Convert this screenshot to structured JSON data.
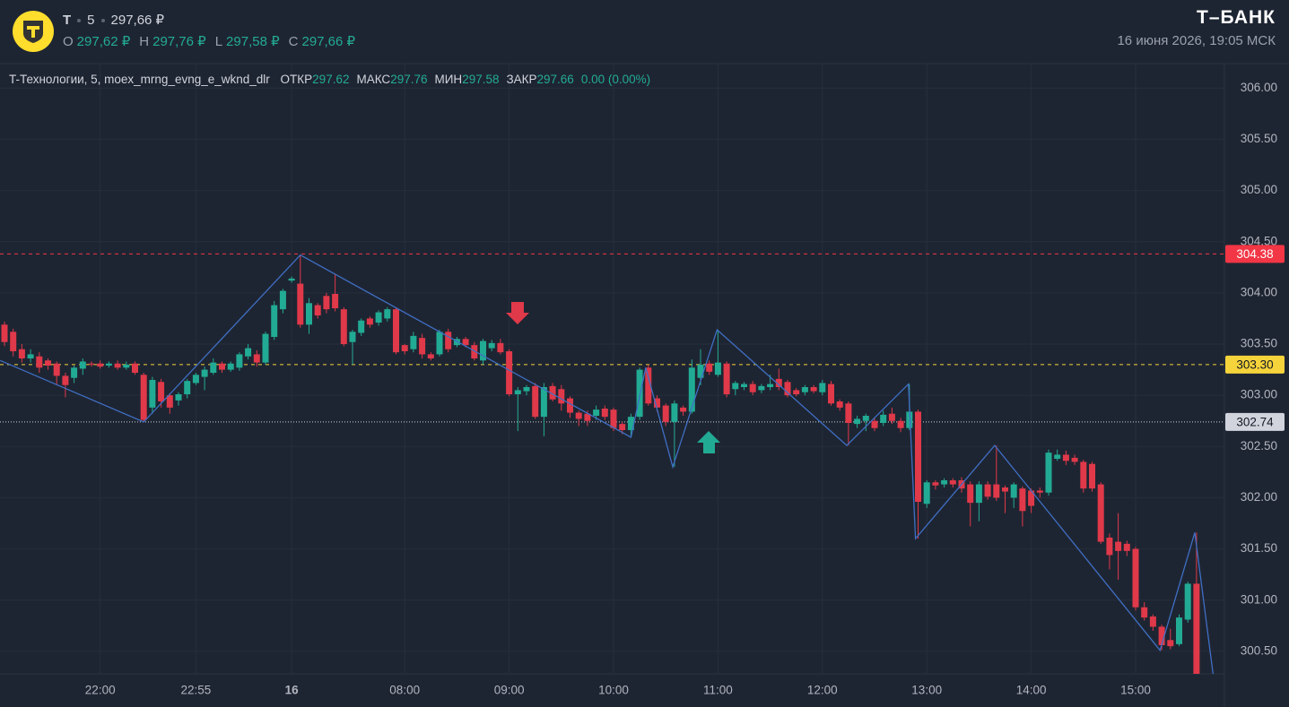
{
  "header": {
    "symbol": "T",
    "interval": "5",
    "price": "297,66 ₽",
    "ohlc": [
      {
        "label": "O",
        "value": "297,62 ₽"
      },
      {
        "label": "H",
        "value": "297,76 ₽"
      },
      {
        "label": "L",
        "value": "297,58 ₽"
      },
      {
        "label": "C",
        "value": "297,66 ₽"
      }
    ],
    "brand": "Т–БАНК",
    "datetime": "16 июня 2026, 19:05 МСК"
  },
  "chart_data": {
    "type": "candlestick",
    "title": "T-Технологии, 5, moex_mrng_evng_e_wknd_dlr",
    "stats": [
      {
        "label": "ОТКР",
        "value": "297.62"
      },
      {
        "label": "МАКС",
        "value": "297.76"
      },
      {
        "label": "МИН",
        "value": "297.58"
      },
      {
        "label": "ЗАКР",
        "value": "297.66"
      }
    ],
    "change": "0.00 (0.00%)",
    "categories": [
      null,
      null,
      null,
      null,
      null,
      null,
      null,
      null,
      null,
      null,
      null,
      "22:00",
      null,
      null,
      null,
      null,
      null,
      null,
      null,
      null,
      null,
      null,
      "22:55",
      null,
      null,
      null,
      null,
      null,
      null,
      null,
      null,
      null,
      null,
      "16",
      null,
      null,
      null,
      null,
      null,
      null,
      null,
      null,
      null,
      null,
      null,
      null,
      "08:00",
      null,
      null,
      null,
      null,
      null,
      null,
      null,
      null,
      null,
      null,
      null,
      "09:00",
      null,
      null,
      null,
      null,
      null,
      null,
      null,
      null,
      null,
      null,
      null,
      "10:00",
      null,
      null,
      null,
      null,
      null,
      null,
      null,
      null,
      null,
      null,
      null,
      "11:00",
      null,
      null,
      null,
      null,
      null,
      null,
      null,
      null,
      null,
      null,
      null,
      "12:00",
      null,
      null,
      null,
      null,
      null,
      null,
      null,
      null,
      null,
      null,
      null,
      "13:00",
      null,
      null,
      null,
      null,
      null,
      null,
      null,
      null,
      null,
      null,
      null,
      "14:00",
      null,
      null,
      null,
      null,
      null,
      null,
      null,
      null,
      null,
      null,
      null,
      "15:00",
      null,
      null,
      null,
      null,
      null,
      null,
      null
    ],
    "open": [
      303.69,
      303.62,
      303.45,
      303.36,
      303.38,
      303.34,
      303.31,
      303.19,
      303.17,
      303.26,
      303.31,
      303.31,
      303.29,
      303.31,
      303.27,
      303.31,
      303.2,
      302.88,
      303.13,
      303.0,
      302.95,
      303.01,
      303.12,
      303.18,
      303.22,
      303.31,
      303.25,
      303.27,
      303.38,
      303.4,
      303.32,
      303.57,
      303.84,
      304.12,
      304.09,
      303.69,
      303.88,
      303.97,
      303.99,
      303.84,
      303.52,
      303.61,
      303.75,
      303.71,
      303.75,
      303.84,
      303.49,
      303.45,
      303.56,
      303.4,
      303.4,
      303.62,
      303.49,
      303.55,
      303.49,
      303.34,
      303.46,
      303.51,
      303.43,
      303.01,
      303.04,
      303.09,
      302.79,
      303.09,
      303.06,
      302.97,
      302.83,
      302.82,
      302.8,
      302.87,
      302.86,
      302.72,
      302.66,
      302.79,
      303.27,
      302.97,
      302.9,
      302.74,
      302.88,
      302.84,
      303.17,
      303.31,
      303.2,
      303.31,
      303.06,
      303.08,
      303.11,
      303.05,
      303.08,
      303.16,
      303.13,
      303.05,
      303.03,
      303.08,
      303.03,
      303.11,
      302.94,
      302.92,
      302.72,
      302.75,
      302.75,
      302.73,
      302.82,
      302.75,
      302.68,
      302.84,
      301.94,
      302.15,
      302.13,
      302.17,
      302.17,
      302.13,
      301.95,
      302.13,
      302.13,
      302.1,
      302.0,
      302.09,
      302.07,
      302.07,
      302.05,
      302.38,
      302.42,
      302.39,
      302.35,
      302.33,
      302.13,
      301.61,
      301.57,
      301.55,
      301.5,
      300.93,
      300.84,
      300.74,
      300.61,
      300.57,
      300.81,
      301.16
    ],
    "high": [
      303.72,
      303.65,
      303.5,
      303.45,
      303.42,
      303.36,
      303.33,
      303.22,
      303.29,
      303.36,
      303.33,
      303.34,
      303.33,
      303.34,
      303.33,
      303.33,
      303.22,
      303.18,
      303.16,
      303.02,
      303.03,
      303.16,
      303.22,
      303.28,
      303.36,
      303.33,
      303.33,
      303.42,
      303.5,
      303.44,
      303.62,
      303.92,
      304.04,
      304.16,
      304.37,
      303.95,
      303.9,
      304.0,
      304.18,
      303.86,
      303.64,
      303.75,
      303.77,
      303.83,
      303.86,
      303.86,
      303.5,
      303.62,
      303.6,
      303.42,
      303.64,
      303.65,
      303.57,
      303.57,
      303.52,
      303.55,
      303.54,
      303.55,
      303.45,
      303.08,
      303.1,
      303.12,
      303.12,
      303.12,
      303.1,
      302.99,
      302.85,
      302.85,
      302.9,
      302.9,
      302.88,
      302.74,
      302.82,
      303.27,
      303.3,
      303.0,
      302.92,
      302.95,
      302.9,
      303.35,
      303.45,
      303.34,
      303.64,
      303.33,
      303.14,
      303.13,
      303.14,
      303.11,
      303.2,
      303.26,
      303.15,
      303.07,
      303.1,
      303.1,
      303.15,
      303.14,
      302.96,
      302.94,
      302.8,
      302.82,
      302.78,
      302.85,
      302.88,
      302.78,
      303.11,
      302.86,
      302.17,
      302.17,
      302.19,
      302.19,
      302.2,
      302.16,
      302.16,
      302.16,
      302.51,
      302.12,
      302.15,
      302.11,
      302.09,
      302.1,
      302.47,
      302.47,
      302.46,
      302.42,
      302.37,
      302.35,
      302.15,
      301.65,
      301.85,
      301.58,
      301.52,
      300.98,
      300.86,
      300.76,
      300.72,
      300.86,
      301.18,
      301.66
    ],
    "low": [
      303.48,
      303.38,
      303.32,
      303.32,
      303.22,
      303.25,
      303.1,
      302.98,
      303.12,
      303.2,
      303.28,
      303.26,
      303.27,
      303.25,
      303.25,
      303.2,
      302.74,
      302.82,
      302.88,
      302.82,
      302.9,
      302.97,
      303.1,
      303.05,
      303.2,
      303.22,
      303.23,
      303.24,
      303.35,
      303.28,
      303.3,
      303.54,
      303.8,
      304.1,
      303.66,
      303.6,
      303.75,
      303.8,
      303.82,
      303.48,
      303.3,
      303.58,
      303.66,
      303.68,
      303.72,
      303.4,
      303.4,
      303.42,
      303.36,
      303.34,
      303.38,
      303.42,
      303.47,
      303.47,
      303.34,
      303.3,
      303.43,
      303.4,
      302.99,
      302.65,
      303.0,
      302.77,
      302.6,
      302.94,
      302.85,
      302.78,
      302.7,
      302.7,
      302.76,
      302.76,
      302.65,
      302.62,
      302.59,
      302.76,
      302.9,
      302.84,
      302.7,
      302.3,
      302.8,
      302.82,
      303.1,
      303.2,
      303.18,
      302.98,
      303.0,
      303.05,
      303.0,
      303.02,
      303.05,
      303.05,
      302.98,
      302.99,
      303.0,
      303.02,
      303.0,
      302.9,
      302.85,
      302.51,
      302.68,
      302.65,
      302.65,
      302.7,
      302.72,
      302.64,
      302.66,
      301.6,
      301.9,
      302.08,
      302.1,
      302.1,
      302.05,
      301.72,
      301.77,
      301.98,
      301.97,
      301.85,
      301.9,
      301.72,
      301.85,
      302.0,
      302.02,
      302.36,
      302.32,
      302.32,
      302.05,
      302.06,
      301.55,
      301.3,
      301.2,
      301.43,
      300.9,
      300.8,
      300.7,
      300.51,
      300.52,
      300.55,
      300.78,
      300.28
    ],
    "close": [
      303.52,
      303.43,
      303.36,
      303.4,
      303.27,
      303.29,
      303.19,
      303.1,
      303.27,
      303.33,
      303.3,
      303.28,
      303.31,
      303.27,
      303.3,
      303.22,
      302.76,
      303.15,
      302.94,
      302.88,
      303.01,
      303.14,
      303.2,
      303.25,
      303.32,
      303.25,
      303.31,
      303.4,
      303.46,
      303.32,
      303.6,
      303.88,
      304.02,
      304.14,
      303.69,
      303.9,
      303.78,
      303.84,
      303.85,
      303.5,
      303.62,
      303.73,
      303.69,
      303.81,
      303.84,
      303.42,
      303.43,
      303.58,
      303.4,
      303.36,
      303.62,
      303.45,
      303.55,
      303.49,
      303.36,
      303.53,
      303.51,
      303.42,
      303.01,
      303.05,
      303.08,
      302.79,
      303.08,
      302.96,
      302.92,
      302.83,
      302.77,
      302.75,
      302.86,
      302.79,
      302.68,
      302.66,
      302.79,
      303.25,
      302.92,
      302.88,
      302.74,
      302.92,
      302.84,
      303.27,
      303.3,
      303.23,
      303.32,
      303.01,
      303.12,
      303.11,
      303.03,
      303.09,
      303.11,
      303.08,
      303.0,
      303.01,
      303.08,
      303.04,
      303.12,
      302.92,
      302.88,
      302.73,
      302.77,
      302.8,
      302.68,
      302.81,
      302.75,
      302.68,
      302.84,
      301.96,
      302.15,
      302.12,
      302.17,
      302.13,
      302.09,
      301.95,
      302.13,
      302.01,
      302.0,
      302.06,
      302.13,
      301.87,
      301.92,
      302.05,
      302.44,
      302.42,
      302.36,
      302.35,
      302.09,
      302.09,
      301.57,
      301.44,
      301.48,
      301.48,
      300.93,
      300.83,
      300.74,
      300.56,
      300.55,
      300.83,
      301.16,
      300.28
    ],
    "up_color": "#22ab94",
    "down_color": "#e0394a",
    "ylim": [
      300.28,
      306.23
    ],
    "yticks": [
      {
        "value": 300.5,
        "label": "300.50"
      },
      {
        "value": 301,
        "label": "301.00"
      },
      {
        "value": 301.5,
        "label": "301.50"
      },
      {
        "value": 302,
        "label": "302.00"
      },
      {
        "value": 302.5,
        "label": "302.50"
      },
      {
        "value": 303,
        "label": "303.00"
      },
      {
        "value": 303.5,
        "label": "303.50"
      },
      {
        "value": 304,
        "label": "304.00"
      },
      {
        "value": 304.5,
        "label": "304.50"
      },
      {
        "value": 305,
        "label": "305.00"
      },
      {
        "value": 305.5,
        "label": "305.50"
      },
      {
        "value": 306,
        "label": "306.00"
      }
    ],
    "grid": true,
    "hlines": [
      {
        "value": 304.38,
        "color": "#f23645",
        "style": "dashed",
        "text_color": "#ffffff"
      },
      {
        "value": 303.3,
        "label": "303.30",
        "color": "#f5d33b",
        "style": "dashed",
        "text_color": "#131722"
      },
      {
        "value": 302.74,
        "color": "#d1d4dc",
        "style": "dotted",
        "text_color": "#131722"
      }
    ],
    "zigzag": {
      "color": "#3f6fc4",
      "x": [
        -0.5,
        16,
        34,
        72,
        73.7,
        76.8,
        81.9,
        96.8,
        103.9,
        104.7,
        113.8,
        132.8,
        136.8,
        138.9
      ],
      "values": [
        303.34,
        302.74,
        304.37,
        302.59,
        303.27,
        302.3,
        303.64,
        302.51,
        303.11,
        301.6,
        302.51,
        300.51,
        301.66,
        300.28
      ]
    }
  }
}
